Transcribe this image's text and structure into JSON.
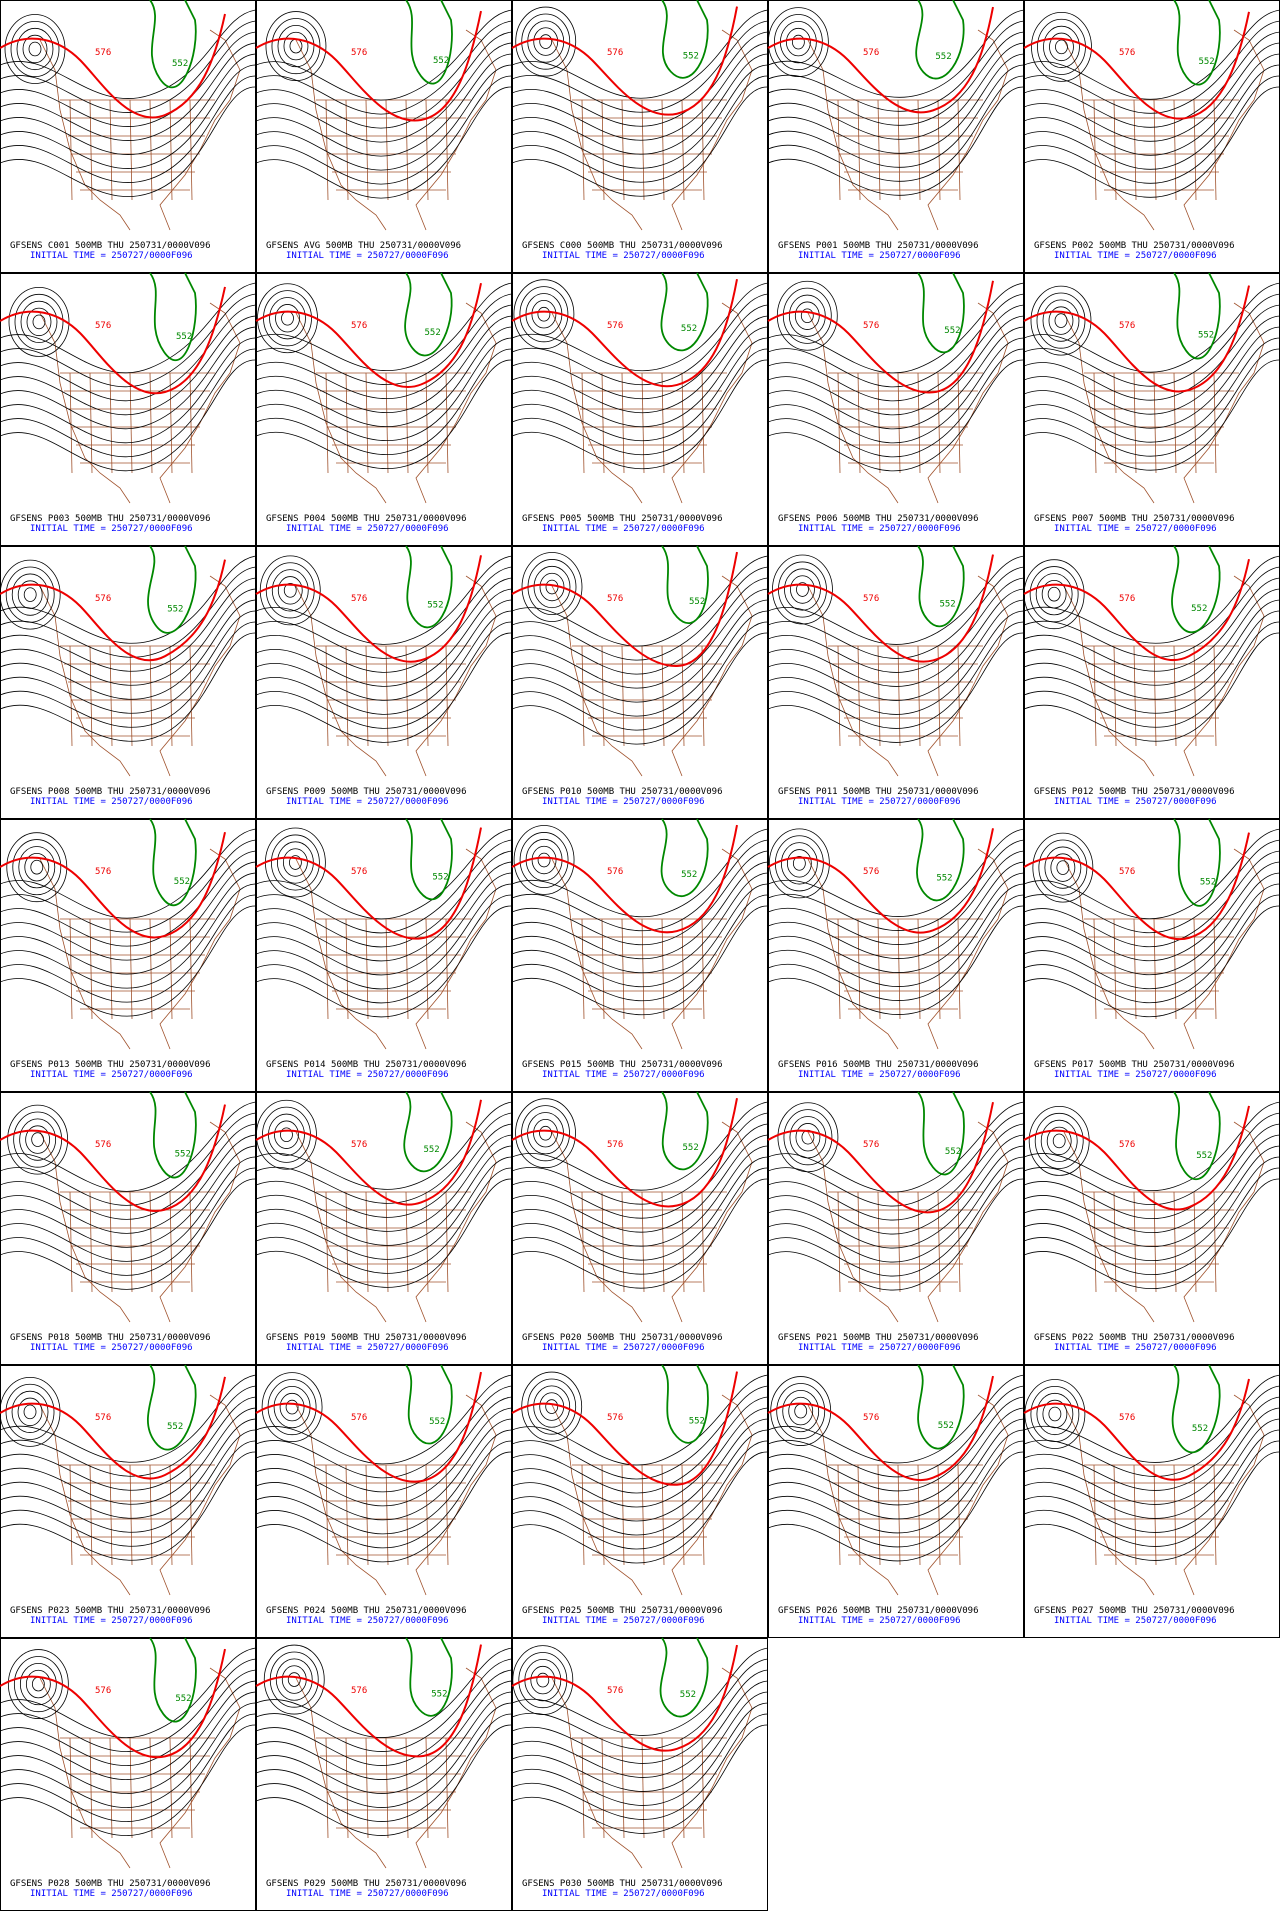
{
  "contour_labels": {
    "low": "552",
    "ridge": "576"
  },
  "panels": [
    {
      "label": "GFSENS C001 500MB THU 250731/0000V096",
      "init": "INITIAL TIME = 250727/0000F096"
    },
    {
      "label": "GFSENS AVG 500MB THU 250731/0000V096",
      "init": "INITIAL TIME = 250727/0000F096"
    },
    {
      "label": "GFSENS C000 500MB THU 250731/0000V096",
      "init": "INITIAL TIME = 250727/0000F096"
    },
    {
      "label": "GFSENS P001 500MB THU 250731/0000V096",
      "init": "INITIAL TIME = 250727/0000F096"
    },
    {
      "label": "GFSENS P002 500MB THU 250731/0000V096",
      "init": "INITIAL TIME = 250727/0000F096"
    },
    {
      "label": "GFSENS P003 500MB THU 250731/0000V096",
      "init": "INITIAL TIME = 250727/0000F096"
    },
    {
      "label": "GFSENS P004 500MB THU 250731/0000V096",
      "init": "INITIAL TIME = 250727/0000F096"
    },
    {
      "label": "GFSENS P005 500MB THU 250731/0000V096",
      "init": "INITIAL TIME = 250727/0000F096"
    },
    {
      "label": "GFSENS P006 500MB THU 250731/0000V096",
      "init": "INITIAL TIME = 250727/0000F096"
    },
    {
      "label": "GFSENS P007 500MB THU 250731/0000V096",
      "init": "INITIAL TIME = 250727/0000F096"
    },
    {
      "label": "GFSENS P008 500MB THU 250731/0000V096",
      "init": "INITIAL TIME = 250727/0000F096"
    },
    {
      "label": "GFSENS P009 500MB THU 250731/0000V096",
      "init": "INITIAL TIME = 250727/0000F096"
    },
    {
      "label": "GFSENS P010 500MB THU 250731/0000V096",
      "init": "INITIAL TIME = 250727/0000F096"
    },
    {
      "label": "GFSENS P011 500MB THU 250731/0000V096",
      "init": "INITIAL TIME = 250727/0000F096"
    },
    {
      "label": "GFSENS P012 500MB THU 250731/0000V096",
      "init": "INITIAL TIME = 250727/0000F096"
    },
    {
      "label": "GFSENS P013 500MB THU 250731/0000V096",
      "init": "INITIAL TIME = 250727/0000F096"
    },
    {
      "label": "GFSENS P014 500MB THU 250731/0000V096",
      "init": "INITIAL TIME = 250727/0000F096"
    },
    {
      "label": "GFSENS P015 500MB THU 250731/0000V096",
      "init": "INITIAL TIME = 250727/0000F096"
    },
    {
      "label": "GFSENS P016 500MB THU 250731/0000V096",
      "init": "INITIAL TIME = 250727/0000F096"
    },
    {
      "label": "GFSENS P017 500MB THU 250731/0000V096",
      "init": "INITIAL TIME = 250727/0000F096"
    },
    {
      "label": "GFSENS P018 500MB THU 250731/0000V096",
      "init": "INITIAL TIME = 250727/0000F096"
    },
    {
      "label": "GFSENS P019 500MB THU 250731/0000V096",
      "init": "INITIAL TIME = 250727/0000F096"
    },
    {
      "label": "GFSENS P020 500MB THU 250731/0000V096",
      "init": "INITIAL TIME = 250727/0000F096"
    },
    {
      "label": "GFSENS P021 500MB THU 250731/0000V096",
      "init": "INITIAL TIME = 250727/0000F096"
    },
    {
      "label": "GFSENS P022 500MB THU 250731/0000V096",
      "init": "INITIAL TIME = 250727/0000F096"
    },
    {
      "label": "GFSENS P023 500MB THU 250731/0000V096",
      "init": "INITIAL TIME = 250727/0000F096"
    },
    {
      "label": "GFSENS P024 500MB THU 250731/0000V096",
      "init": "INITIAL TIME = 250727/0000F096"
    },
    {
      "label": "GFSENS P025 500MB THU 250731/0000V096",
      "init": "INITIAL TIME = 250727/0000F096"
    },
    {
      "label": "GFSENS P026 500MB THU 250731/0000V096",
      "init": "INITIAL TIME = 250727/0000F096"
    },
    {
      "label": "GFSENS P027 500MB THU 250731/0000V096",
      "init": "INITIAL TIME = 250727/0000F096"
    },
    {
      "label": "GFSENS P028 500MB THU 250731/0000V096",
      "init": "INITIAL TIME = 250727/0000F096"
    },
    {
      "label": "GFSENS P029 500MB THU 250731/0000V096",
      "init": "INITIAL TIME = 250727/0000F096"
    },
    {
      "label": "GFSENS P030 500MB THU 250731/0000V096",
      "init": "INITIAL TIME = 250727/0000F096"
    }
  ]
}
